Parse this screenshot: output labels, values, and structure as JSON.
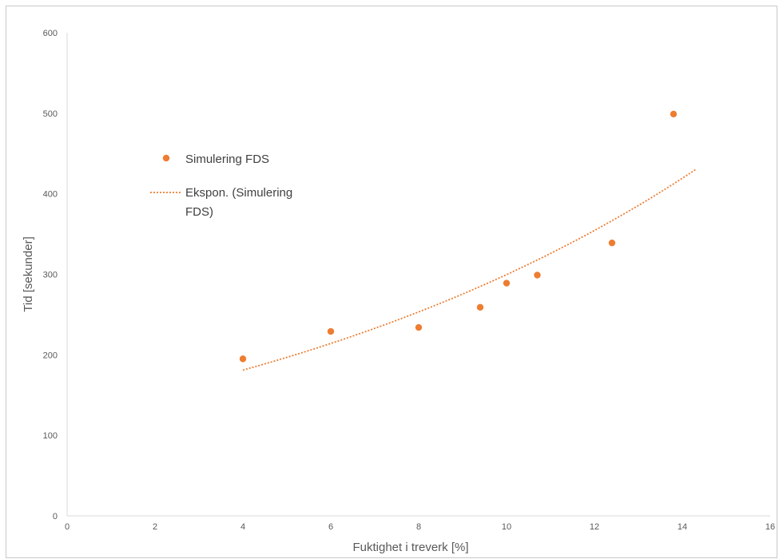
{
  "chart_data": {
    "type": "scatter",
    "title": "",
    "xlabel": "Fuktighet i treverk [%]",
    "ylabel": "Tid [sekunder]",
    "xlim": [
      0,
      16
    ],
    "ylim": [
      0,
      600
    ],
    "xticks": [
      0,
      2,
      4,
      6,
      8,
      10,
      12,
      14,
      16
    ],
    "yticks": [
      0,
      100,
      200,
      300,
      400,
      500,
      600
    ],
    "grid": false,
    "legend_position": "left",
    "series": [
      {
        "name": "Simulering FDS",
        "kind": "points",
        "color": "#ED7D31",
        "x": [
          4,
          6,
          8,
          9.4,
          10,
          10.7,
          12.4,
          13.8
        ],
        "y": [
          195,
          229,
          234,
          259,
          289,
          299,
          339,
          499
        ]
      },
      {
        "name": "Ekspon. (Simulering FDS)",
        "kind": "trendline",
        "fit": "exponential",
        "style": "dotted",
        "color": "#ED7D31",
        "x": [
          4,
          6,
          8,
          10,
          12,
          14.3
        ],
        "y": [
          181,
          214,
          253,
          300,
          355,
          430
        ]
      }
    ]
  }
}
